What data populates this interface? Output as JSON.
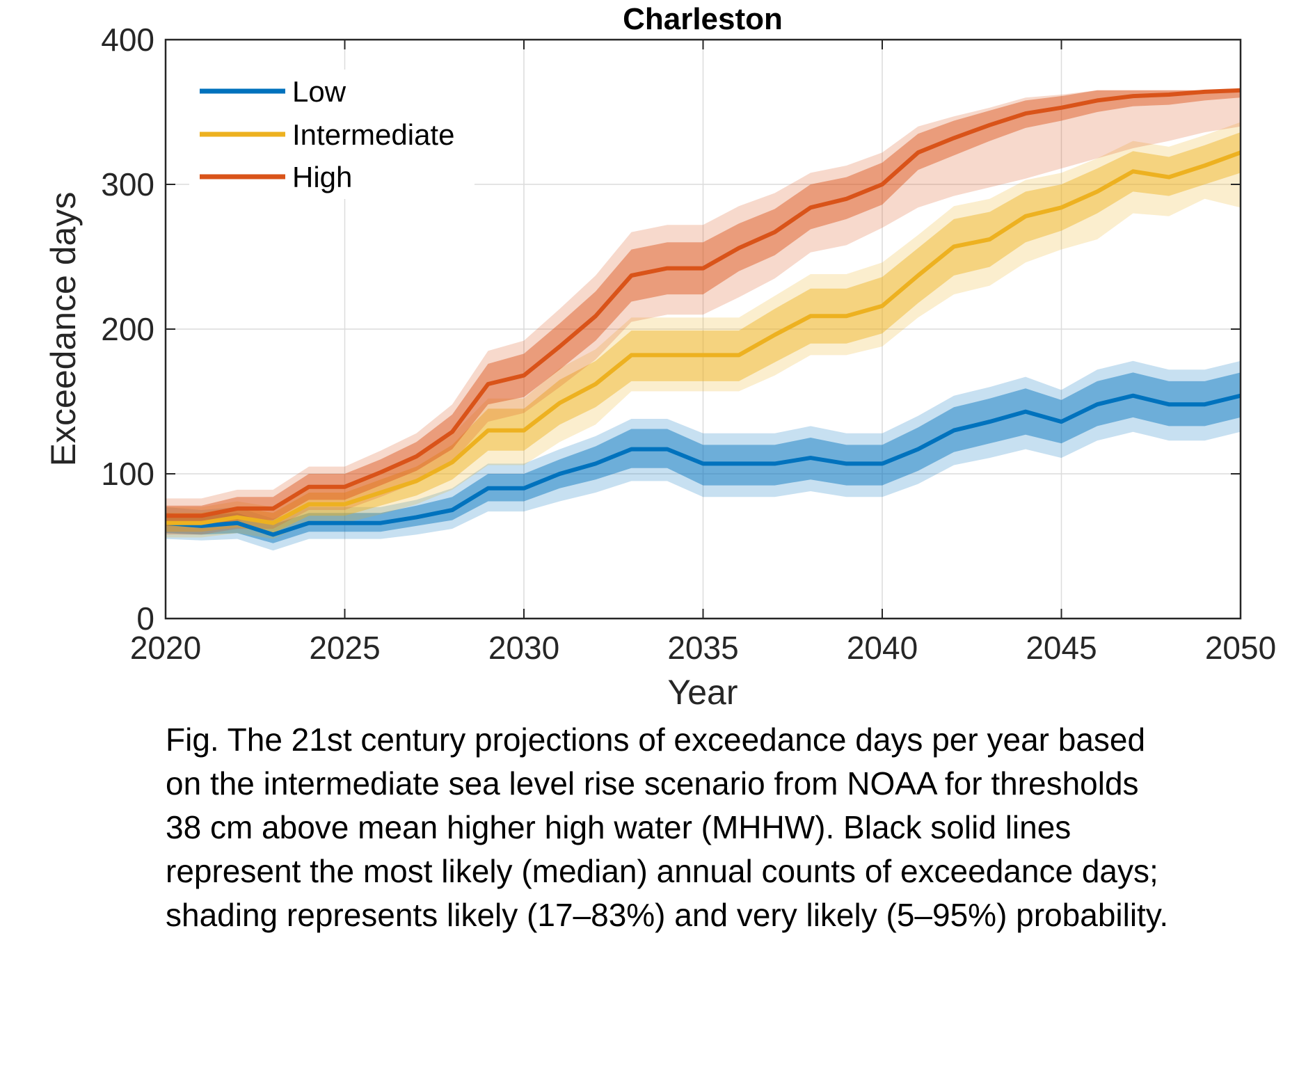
{
  "chart_data": {
    "type": "line",
    "title": "Charleston",
    "xlabel": "Year",
    "ylabel": "Exceedance days",
    "xlim": [
      2020,
      2050
    ],
    "ylim": [
      0,
      400
    ],
    "x_ticks": [
      "2020",
      "2025",
      "2030",
      "2035",
      "2040",
      "2045",
      "2050"
    ],
    "y_ticks": [
      "0",
      "100",
      "200",
      "300",
      "400"
    ],
    "grid": true,
    "legend_position": "top-left",
    "x": [
      2020,
      2021,
      2022,
      2023,
      2024,
      2025,
      2026,
      2027,
      2028,
      2029,
      2030,
      2031,
      2032,
      2033,
      2034,
      2035,
      2036,
      2037,
      2038,
      2039,
      2040,
      2041,
      2042,
      2043,
      2044,
      2045,
      2046,
      2047,
      2048,
      2049,
      2050
    ],
    "series": [
      {
        "name": "Low",
        "color": "#0072BD",
        "median": [
          66,
          64,
          66,
          58,
          66,
          66,
          66,
          70,
          75,
          90,
          90,
          100,
          107,
          117,
          117,
          107,
          107,
          107,
          111,
          107,
          107,
          117,
          130,
          136,
          143,
          136,
          148,
          154,
          148,
          148,
          154
        ],
        "likely_low": [
          59,
          58,
          59,
          52,
          60,
          60,
          60,
          64,
          68,
          81,
          81,
          90,
          96,
          104,
          104,
          92,
          92,
          92,
          96,
          92,
          92,
          102,
          115,
          121,
          127,
          121,
          133,
          139,
          133,
          133,
          139
        ],
        "likely_high": [
          73,
          71,
          73,
          65,
          73,
          73,
          73,
          78,
          84,
          100,
          100,
          110,
          119,
          131,
          131,
          120,
          120,
          120,
          125,
          120,
          120,
          132,
          146,
          152,
          159,
          151,
          164,
          170,
          164,
          164,
          170
        ],
        "vlikely_low": [
          55,
          54,
          55,
          47,
          55,
          55,
          55,
          58,
          62,
          74,
          74,
          81,
          87,
          95,
          95,
          84,
          84,
          84,
          88,
          84,
          84,
          93,
          106,
          111,
          117,
          111,
          123,
          129,
          123,
          123,
          129
        ],
        "vlikely_high": [
          77,
          75,
          77,
          69,
          77,
          77,
          77,
          82,
          90,
          107,
          107,
          117,
          126,
          138,
          138,
          128,
          128,
          128,
          133,
          128,
          128,
          140,
          154,
          160,
          167,
          158,
          172,
          178,
          172,
          172,
          178
        ]
      },
      {
        "name": "Intermediate",
        "color": "#EDB120",
        "median": [
          66,
          66,
          70,
          66,
          79,
          79,
          87,
          95,
          108,
          130,
          130,
          149,
          162,
          182,
          182,
          182,
          182,
          196,
          209,
          209,
          216,
          237,
          257,
          262,
          278,
          284,
          295,
          309,
          305,
          313,
          322
        ],
        "likely_low": [
          60,
          60,
          63,
          59,
          71,
          71,
          78,
          85,
          96,
          116,
          116,
          134,
          146,
          164,
          164,
          164,
          164,
          177,
          190,
          190,
          197,
          218,
          237,
          243,
          260,
          268,
          280,
          295,
          292,
          300,
          308
        ],
        "likely_high": [
          73,
          73,
          77,
          73,
          87,
          87,
          96,
          105,
          120,
          145,
          145,
          165,
          178,
          199,
          199,
          199,
          199,
          214,
          228,
          228,
          236,
          256,
          276,
          281,
          295,
          300,
          311,
          323,
          319,
          327,
          336
        ],
        "vlikely_low": [
          56,
          56,
          59,
          55,
          66,
          66,
          72,
          79,
          89,
          106,
          106,
          122,
          134,
          157,
          157,
          157,
          157,
          168,
          182,
          182,
          188,
          208,
          224,
          230,
          246,
          255,
          262,
          280,
          278,
          290,
          284
        ],
        "vlikely_high": [
          77,
          77,
          81,
          77,
          92,
          92,
          101,
          111,
          127,
          152,
          152,
          173,
          186,
          208,
          208,
          208,
          208,
          223,
          238,
          238,
          246,
          265,
          285,
          290,
          303,
          308,
          318,
          330,
          326,
          334,
          343
        ]
      },
      {
        "name": "High",
        "color": "#D95319",
        "median": [
          71,
          71,
          76,
          76,
          91,
          91,
          101,
          112,
          129,
          162,
          168,
          188,
          209,
          237,
          242,
          242,
          256,
          267,
          284,
          290,
          300,
          322,
          332,
          341,
          349,
          353,
          358,
          361,
          362,
          364,
          365
        ],
        "likely_low": [
          64,
          64,
          68,
          68,
          82,
          82,
          92,
          102,
          117,
          148,
          153,
          172,
          192,
          219,
          224,
          224,
          240,
          251,
          269,
          276,
          286,
          310,
          320,
          330,
          339,
          344,
          350,
          354,
          355,
          358,
          360
        ],
        "likely_high": [
          78,
          78,
          84,
          84,
          100,
          100,
          110,
          122,
          141,
          176,
          183,
          204,
          226,
          255,
          260,
          260,
          273,
          283,
          300,
          305,
          315,
          335,
          344,
          351,
          358,
          361,
          365,
          365,
          365,
          365,
          365
        ],
        "vlikely_low": [
          58,
          58,
          62,
          62,
          75,
          75,
          84,
          94,
          108,
          136,
          142,
          160,
          179,
          205,
          210,
          210,
          222,
          235,
          253,
          258,
          270,
          284,
          292,
          298,
          304,
          311,
          318,
          325,
          330,
          336,
          340
        ],
        "vlikely_high": [
          83,
          83,
          89,
          89,
          105,
          105,
          116,
          128,
          148,
          185,
          192,
          214,
          237,
          267,
          272,
          272,
          285,
          294,
          308,
          313,
          322,
          340,
          347,
          353,
          360,
          362,
          365,
          365,
          365,
          365,
          365
        ]
      }
    ]
  },
  "caption": {
    "lines": [
      "Fig. The 21st century projections of exceedance days per year based",
      "on the intermediate sea level rise scenario from NOAA for thresholds",
      "38 cm above mean higher high water (MHHW). Black solid lines",
      "represent the most likely (median) annual counts of exceedance days;",
      "shading represents likely (17–83%) and very likely (5–95%) probability."
    ]
  }
}
